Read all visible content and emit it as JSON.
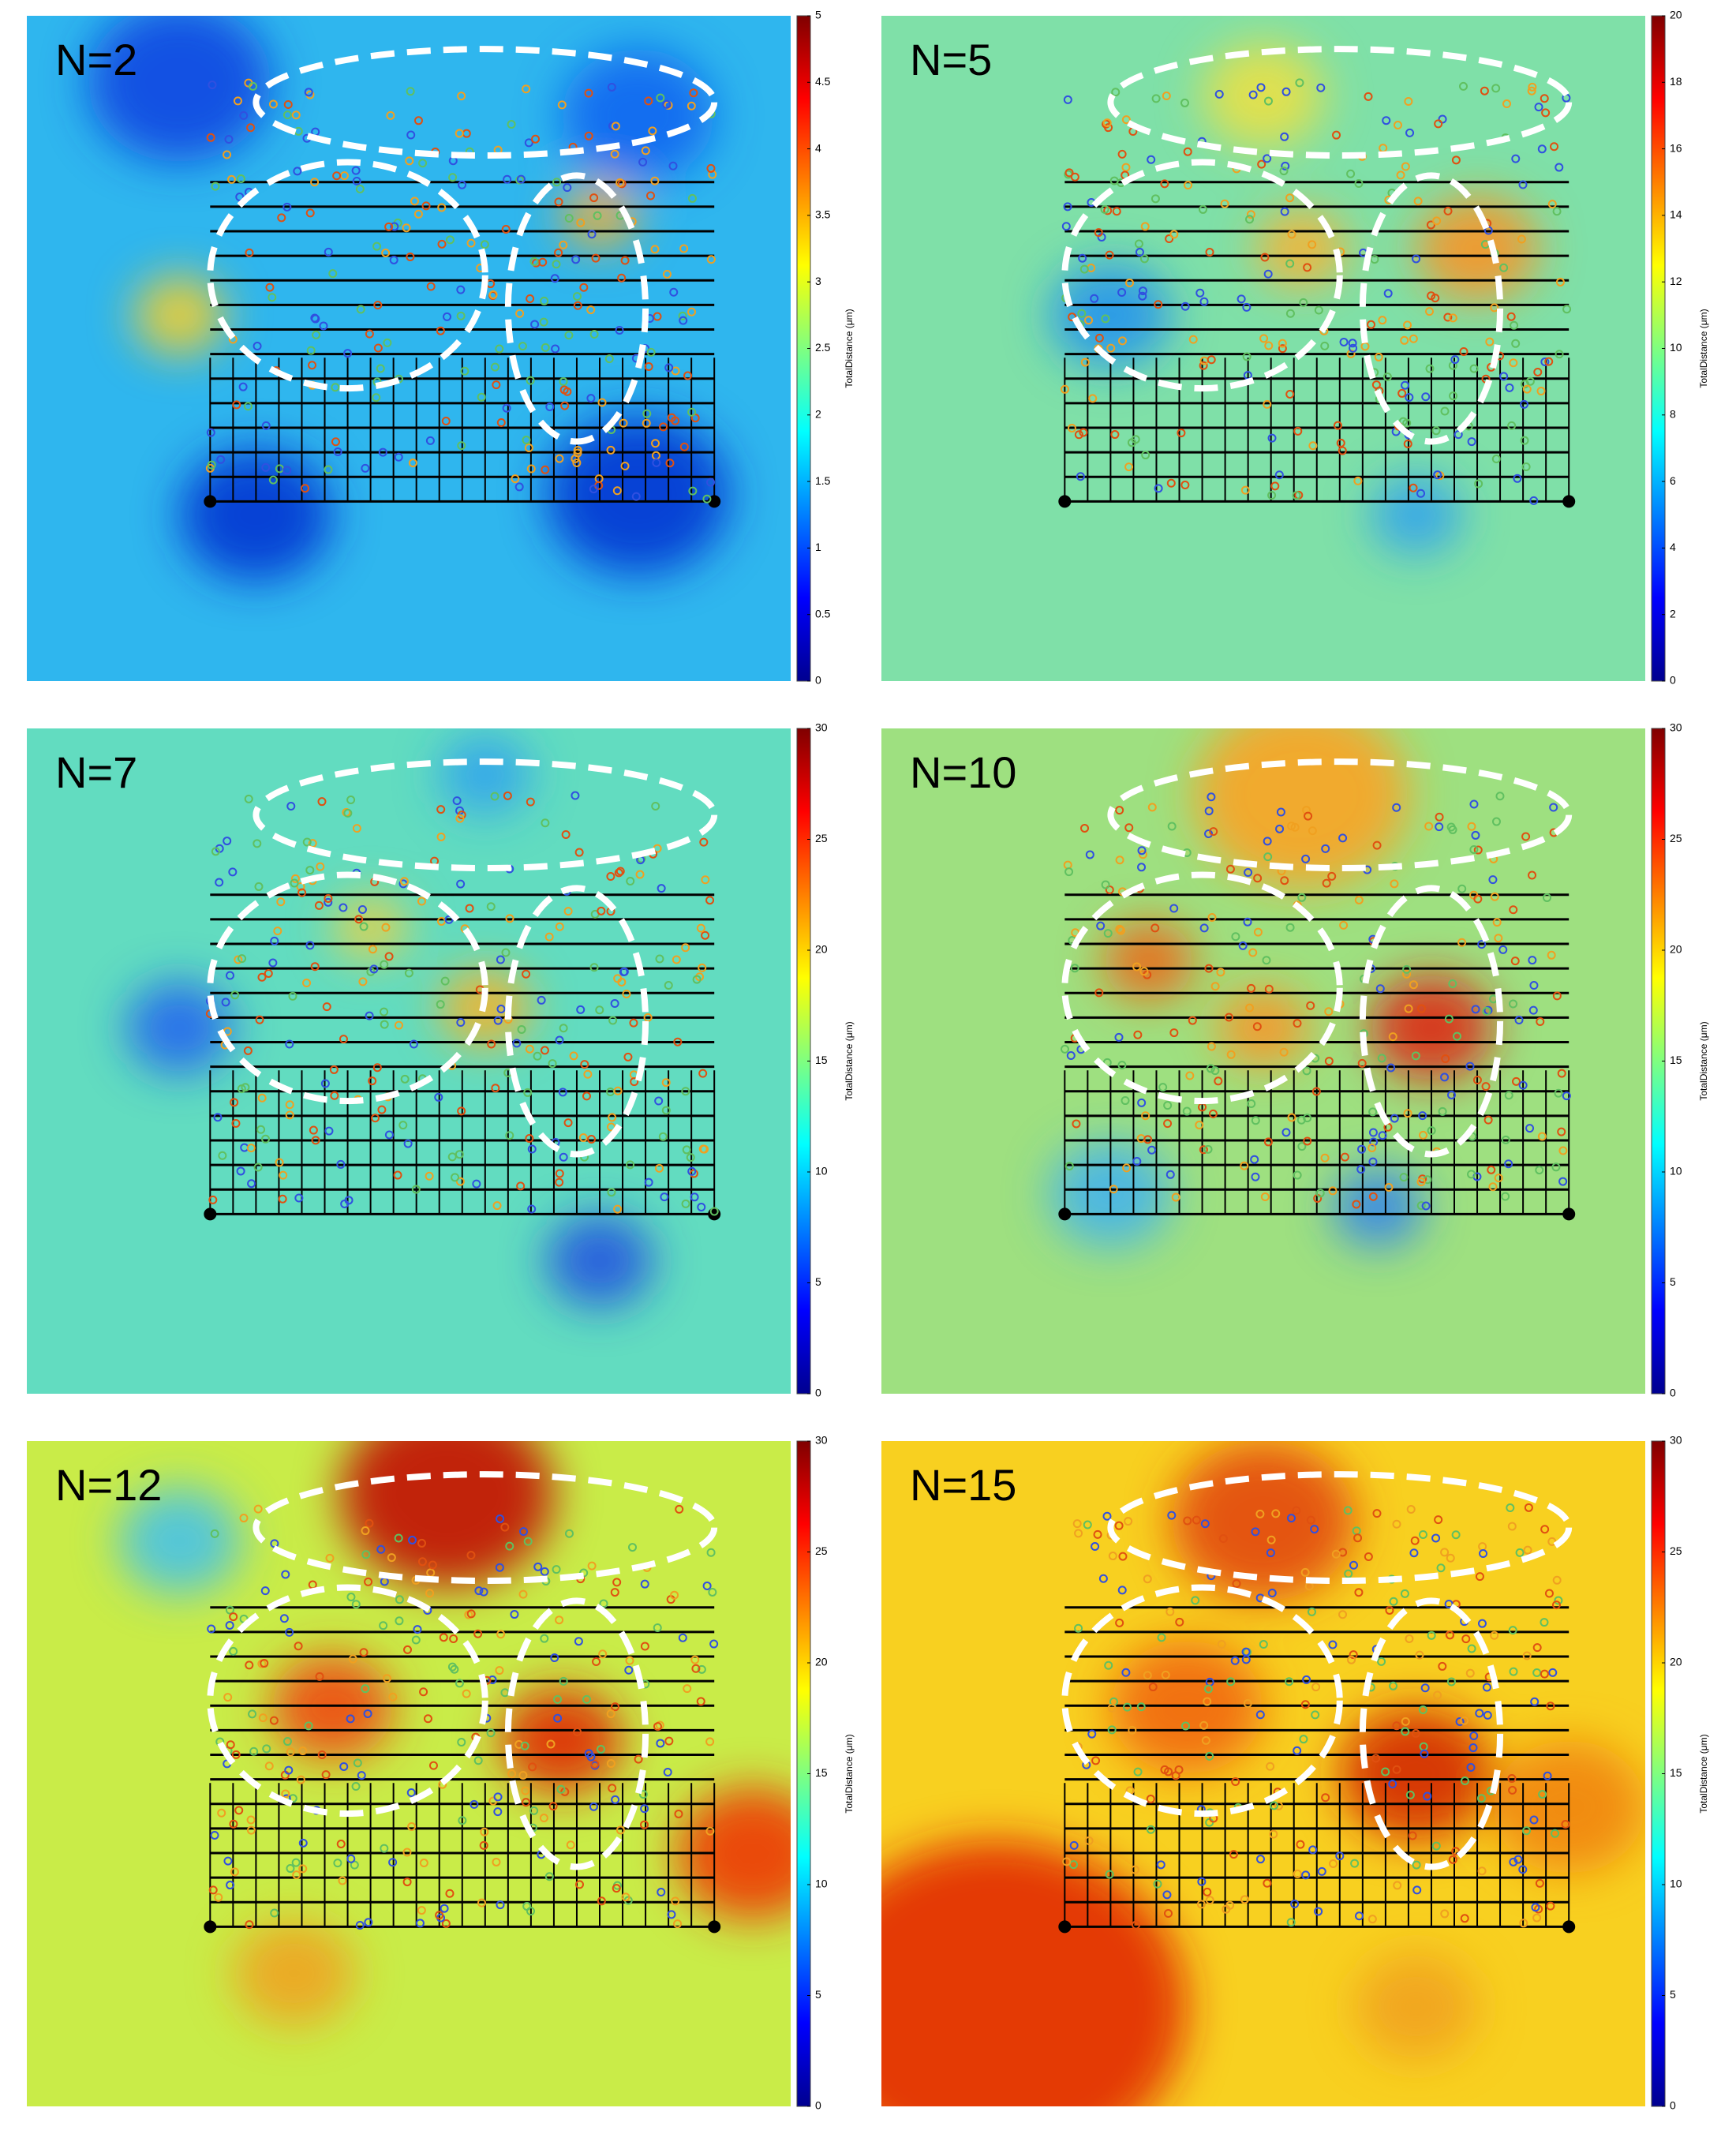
{
  "chart_data": [
    {
      "type": "heatmap",
      "annotation": "N=2",
      "colorbar": {
        "label": "TotalDistance (μm)",
        "lim": [
          0,
          5
        ],
        "ticks": [
          0,
          0.5,
          1,
          1.5,
          2,
          2.5,
          3,
          3.5,
          4,
          4.5,
          5
        ]
      }
    },
    {
      "type": "heatmap",
      "annotation": "N=5",
      "colorbar": {
        "label": "TotalDistance (μm)",
        "lim": [
          0,
          20
        ],
        "ticks": [
          0,
          2,
          4,
          6,
          8,
          10,
          12,
          14,
          16,
          18,
          20
        ]
      }
    },
    {
      "type": "heatmap",
      "annotation": "N=7",
      "colorbar": {
        "label": "TotalDistance (μm)",
        "lim": [
          0,
          30
        ],
        "ticks": [
          0,
          5,
          10,
          15,
          20,
          25,
          30
        ]
      }
    },
    {
      "type": "heatmap",
      "annotation": "N=10",
      "colorbar": {
        "label": "TotalDistance (μm)",
        "lim": [
          0,
          30
        ],
        "ticks": [
          0,
          5,
          10,
          15,
          20,
          25,
          30
        ]
      }
    },
    {
      "type": "heatmap",
      "annotation": "N=12",
      "colorbar": {
        "label": "TotalDistance (μm)",
        "lim": [
          0,
          30
        ],
        "ticks": [
          0,
          5,
          10,
          15,
          20,
          25,
          30
        ]
      }
    },
    {
      "type": "heatmap",
      "annotation": "N=15",
      "colorbar": {
        "label": "TotalDistance (μm)",
        "lim": [
          0,
          30
        ],
        "ticks": [
          0,
          5,
          10,
          15,
          20,
          25,
          30
        ]
      }
    }
  ]
}
